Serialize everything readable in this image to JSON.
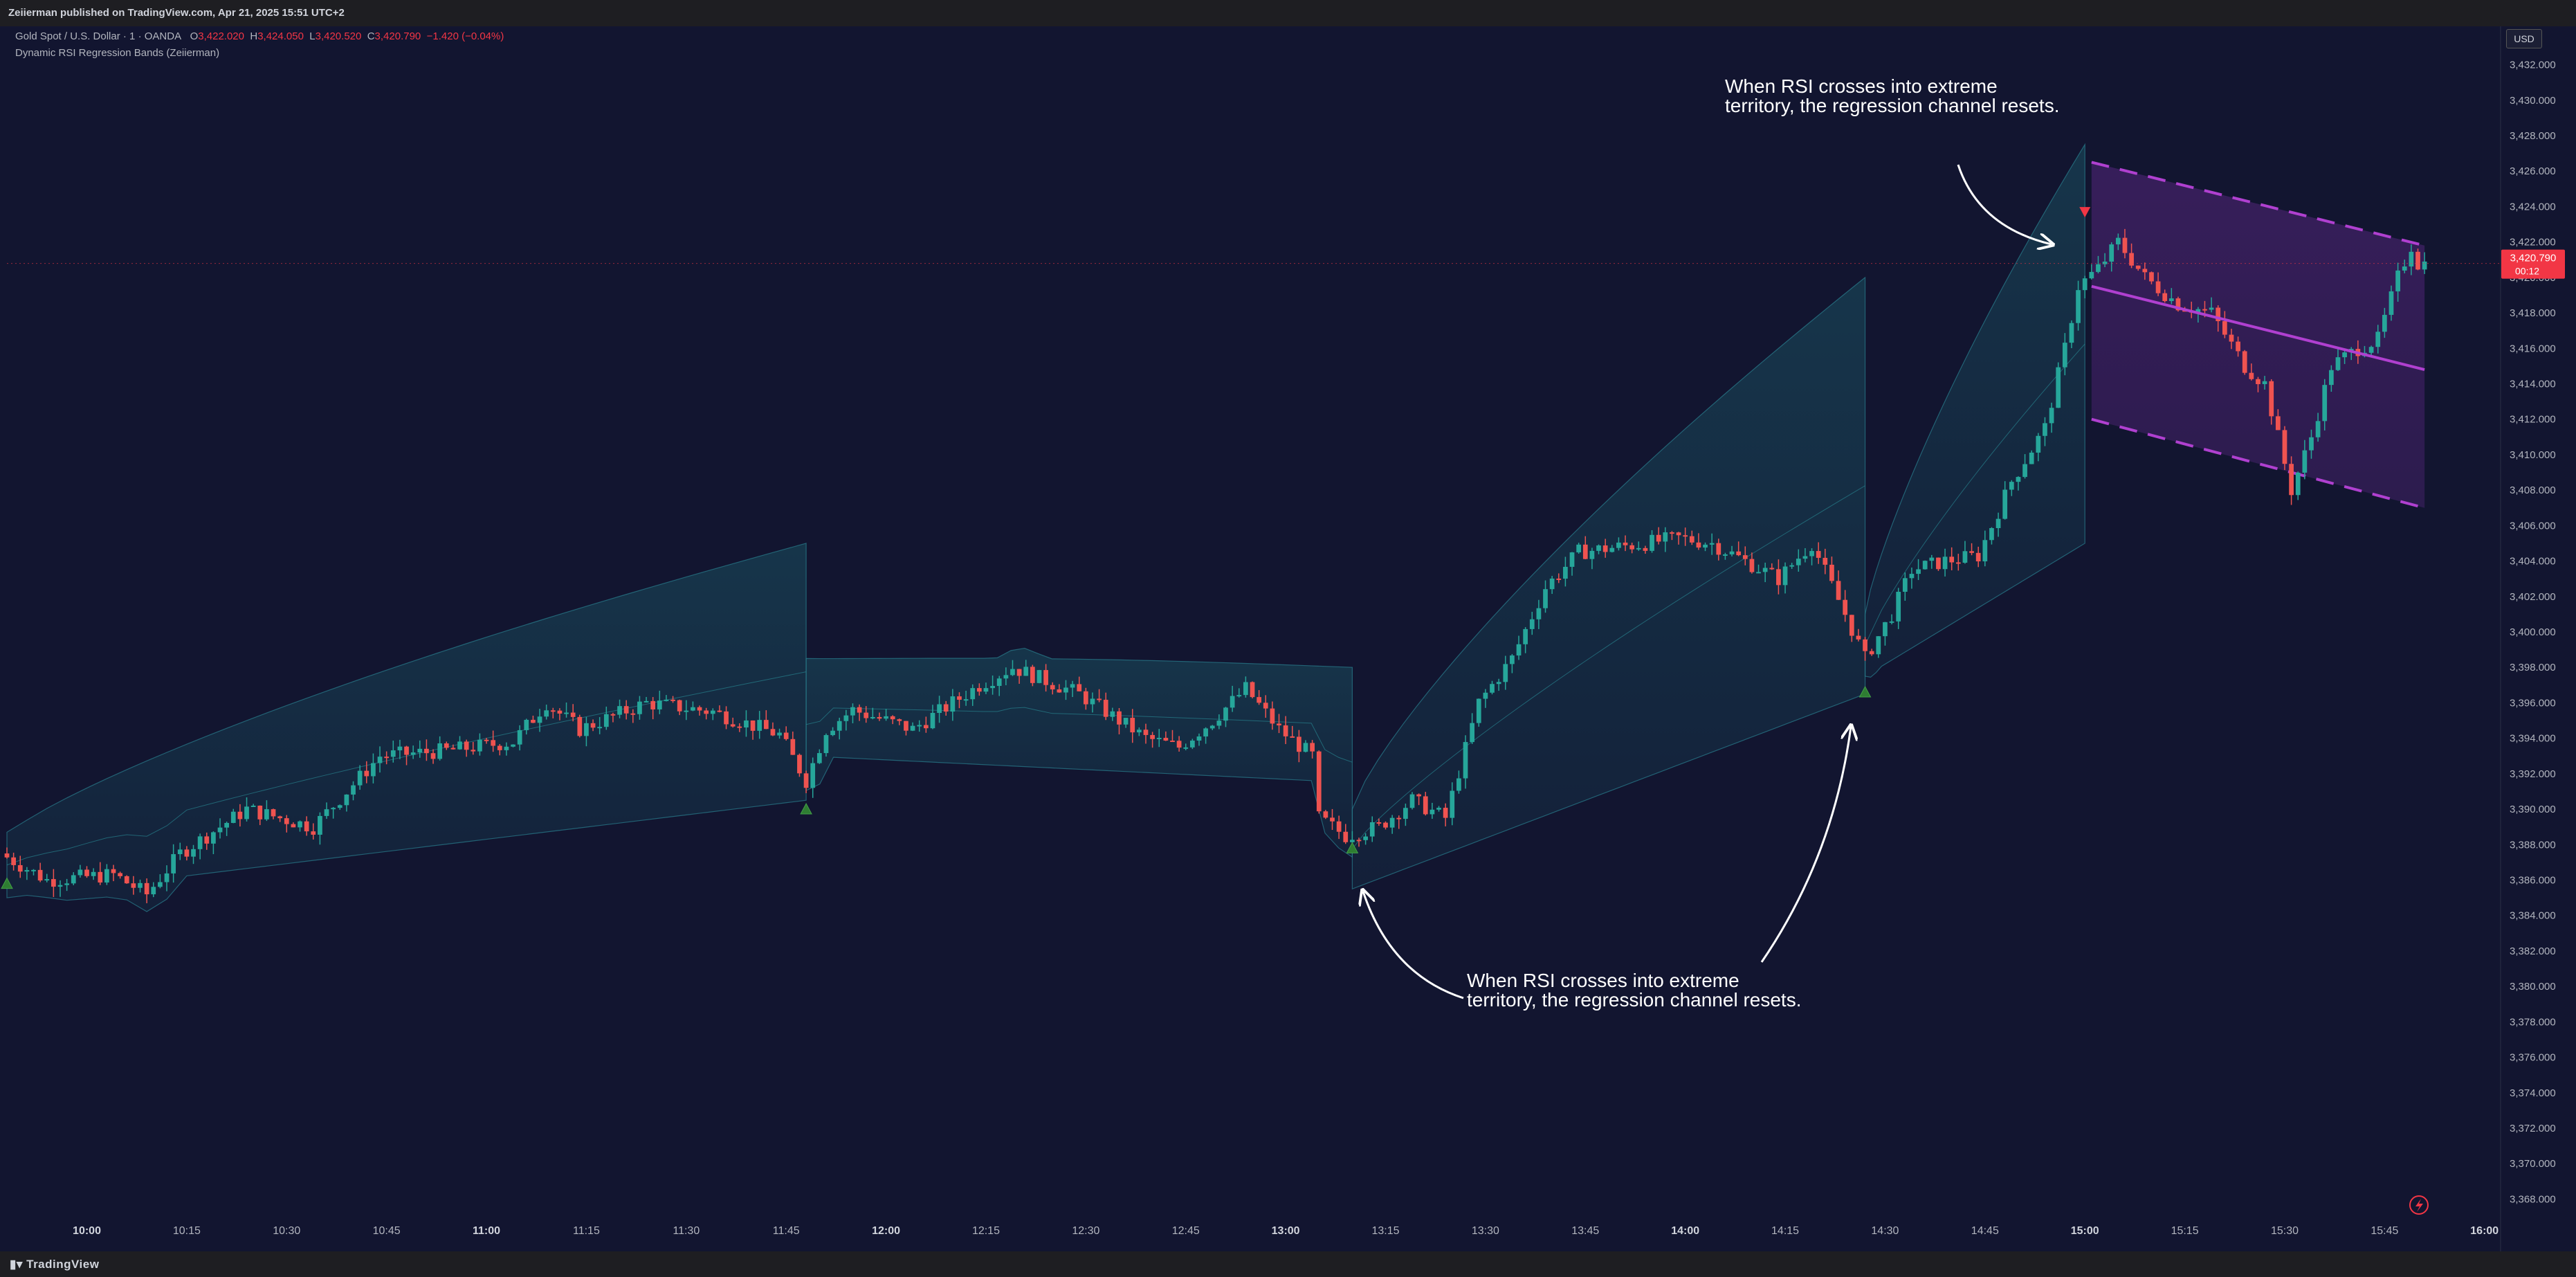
{
  "header": {
    "published": "Zeiierman published on TradingView.com, Apr 21, 2025 15:51 UTC+2"
  },
  "legend": {
    "symbol": "Gold Spot / U.S. Dollar · 1 · OANDA",
    "o_label": "O",
    "o": "3,422.020",
    "h_label": "H",
    "h": "3,424.050",
    "l_label": "L",
    "l": "3,420.520",
    "c_label": "C",
    "c": "3,420.790",
    "change": "−1.420 (−0.04%)",
    "indicator": "Dynamic RSI Regression Bands (Zeiierman)"
  },
  "currency": "USD",
  "price_label": {
    "price": "3,420.790",
    "countdown": "00:12",
    "color": "#f23645"
  },
  "footer": {
    "brand": "TradingView"
  },
  "colors": {
    "background": "#121530",
    "up": "#26a69a",
    "down": "#ef5350",
    "band_teal": "#1b5d6b",
    "band_purple": "#7b2fa8",
    "regression": "#b040d0"
  },
  "annotations": [
    {
      "text": "When RSI crosses into extreme\nterritory, the regression channel resets."
    },
    {
      "text": "When RSI crosses into extreme\nterritory, the regression channel resets."
    }
  ],
  "chart_data": {
    "type": "candlestick",
    "title": "",
    "x_ticks": [
      "10:00",
      "10:15",
      "10:30",
      "10:45",
      "11:00",
      "11:15",
      "11:30",
      "11:45",
      "12:00",
      "12:15",
      "12:30",
      "12:45",
      "13:00",
      "13:15",
      "13:30",
      "13:45",
      "14:00",
      "14:15",
      "14:30",
      "14:45",
      "15:00",
      "15:15",
      "15:30",
      "15:45",
      "16:00"
    ],
    "y_ticks": [
      "3,432.000",
      "3,430.000",
      "3,428.000",
      "3,426.000",
      "3,424.000",
      "3,422.000",
      "3,420.000",
      "3,418.000",
      "3,416.000",
      "3,414.000",
      "3,412.000",
      "3,410.000",
      "3,408.000",
      "3,406.000",
      "3,404.000",
      "3,402.000",
      "3,400.000",
      "3,398.000",
      "3,396.000",
      "3,394.000",
      "3,392.000",
      "3,390.000",
      "3,388.000",
      "3,386.000",
      "3,384.000",
      "3,382.000",
      "3,380.000",
      "3,378.000",
      "3,376.000",
      "3,374.000",
      "3,372.000",
      "3,370.000",
      "3,368.000"
    ],
    "ylim": [
      3367,
      3433
    ],
    "x_range": [
      "09:48",
      "16:02"
    ],
    "anchor_points": [
      [
        "09:48",
        3387.5
      ],
      [
        "09:55",
        3386.0
      ],
      [
        "10:05",
        3386.3
      ],
      [
        "10:10",
        3385.2
      ],
      [
        "10:15",
        3387.5
      ],
      [
        "10:25",
        3390.0
      ],
      [
        "10:35",
        3389.0
      ],
      [
        "10:45",
        3393.0
      ],
      [
        "10:55",
        3393.3
      ],
      [
        "11:05",
        3393.8
      ],
      [
        "11:10",
        3396.0
      ],
      [
        "11:15",
        3394.5
      ],
      [
        "11:25",
        3396.0
      ],
      [
        "11:35",
        3395.5
      ],
      [
        "11:45",
        3394.2
      ],
      [
        "11:49",
        3391.6
      ],
      [
        "11:52",
        3394.5
      ],
      [
        "11:56",
        3395.6
      ],
      [
        "12:05",
        3394.5
      ],
      [
        "12:15",
        3397.0
      ],
      [
        "12:20",
        3398.0
      ],
      [
        "12:30",
        3396.5
      ],
      [
        "12:40",
        3394.0
      ],
      [
        "12:45",
        3393.5
      ],
      [
        "12:50",
        3395.0
      ],
      [
        "12:55",
        3396.8
      ],
      [
        "13:00",
        3394.5
      ],
      [
        "13:05",
        3393.0
      ],
      [
        "13:06",
        3389.5
      ],
      [
        "13:10",
        3388.5
      ],
      [
        "13:15",
        3389.0
      ],
      [
        "13:20",
        3390.5
      ],
      [
        "13:25",
        3389.5
      ],
      [
        "13:30",
        3396.0
      ],
      [
        "13:35",
        3398.5
      ],
      [
        "13:40",
        3402.5
      ],
      [
        "13:45",
        3404.5
      ],
      [
        "13:55",
        3405.0
      ],
      [
        "14:00",
        3405.3
      ],
      [
        "14:05",
        3405.0
      ],
      [
        "14:10",
        3404.0
      ],
      [
        "14:15",
        3403.0
      ],
      [
        "14:20",
        3405.0
      ],
      [
        "14:25",
        3401.0
      ],
      [
        "14:28",
        3398.5
      ],
      [
        "14:32",
        3401.0
      ],
      [
        "14:35",
        3403.5
      ],
      [
        "14:40",
        3404.0
      ],
      [
        "14:45",
        3404.3
      ],
      [
        "14:50",
        3408.5
      ],
      [
        "14:55",
        3411.5
      ],
      [
        "14:58",
        3416.0
      ],
      [
        "15:00",
        3419.5
      ],
      [
        "15:03",
        3420.5
      ],
      [
        "15:06",
        3422.0
      ],
      [
        "15:10",
        3420.0
      ],
      [
        "15:15",
        3418.5
      ],
      [
        "15:20",
        3418.0
      ],
      [
        "15:25",
        3415.0
      ],
      [
        "15:28",
        3414.0
      ],
      [
        "15:32",
        3408.0
      ],
      [
        "15:35",
        3411.0
      ],
      [
        "15:38",
        3415.0
      ],
      [
        "15:42",
        3416.0
      ],
      [
        "15:45",
        3416.5
      ],
      [
        "15:48",
        3420.0
      ],
      [
        "15:50",
        3421.8
      ],
      [
        "15:51",
        3420.8
      ]
    ],
    "bands": [
      {
        "name": "",
        "color": "#1b5d6b",
        "start": "09:48",
        "end": "11:48",
        "mid": [
          3387,
          3394
        ],
        "upper_start": 3388.5,
        "upper_end": 3405.0,
        "lower_start": 3385.0,
        "lower_end": 3390.5
      },
      {
        "name": "",
        "color": "#1b5d6b",
        "start": "11:48",
        "end": "13:10",
        "mid": [
          3395.5,
          3393.5
        ],
        "upper_start": 3398.5,
        "upper_end": 3398.0,
        "lower_start": 3393.0,
        "lower_end": 3391.5
      },
      {
        "name": "",
        "color": "#1b5d6b",
        "start": "13:10",
        "end": "14:27",
        "mid": [
          3386.5,
          3408.0
        ],
        "upper_start": 3390.0,
        "upper_end": 3420.0,
        "lower_start": 3385.5,
        "lower_end": 3396.5
      },
      {
        "name": "",
        "color": "#1b5d6b",
        "start": "14:27",
        "end": "15:00",
        "mid": [
          3399,
          3410
        ],
        "upper_start": 3401.0,
        "upper_end": 3427.5,
        "lower_start": 3397.5,
        "lower_end": 3405.0
      }
    ],
    "regression_channel": {
      "start": "15:01",
      "end": "15:51",
      "mid": [
        3419.5,
        3414.8
      ],
      "upper": [
        3426.5,
        3421.8
      ],
      "lower": [
        3412.0,
        3407.0
      ]
    },
    "signals": [
      {
        "time": "09:48",
        "type": "up",
        "price": 3385.8
      },
      {
        "time": "11:48",
        "type": "up",
        "price": 3390.0
      },
      {
        "time": "13:10",
        "type": "up",
        "price": 3387.8
      },
      {
        "time": "14:27",
        "type": "up",
        "price": 3396.6
      },
      {
        "time": "15:00",
        "type": "down",
        "price": 3423.7
      }
    ]
  }
}
